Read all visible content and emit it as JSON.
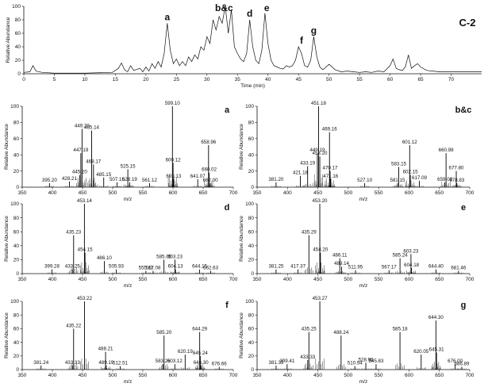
{
  "chart_data": [
    {
      "type": "line",
      "id": "chromatogram",
      "title": "C-2",
      "xlabel": "Time (min)",
      "ylabel": "Relative Abundance",
      "xlim": [
        0,
        75
      ],
      "ylim": [
        0,
        100
      ],
      "xticks": [
        0,
        5,
        10,
        15,
        20,
        25,
        30,
        35,
        40,
        45,
        50,
        55,
        60,
        65,
        70
      ],
      "yticks": [
        0,
        20,
        40,
        60,
        80,
        100
      ],
      "series": [
        {
          "x": [
            0.0,
            1.0,
            1.5,
            2.0,
            3.0,
            5.0,
            10.0,
            14.5,
            15.5,
            16.0,
            16.5,
            17.0,
            17.5,
            18.0,
            19.0,
            19.5,
            20.0,
            20.5,
            21.0,
            21.5,
            22.0,
            22.5,
            23.0,
            23.5,
            24.0,
            24.5,
            25.0,
            25.5,
            26.0,
            26.5,
            27.0,
            27.5,
            28.0,
            28.5,
            29.0,
            29.5,
            30.0,
            30.5,
            31.0,
            31.5,
            32.0,
            32.5,
            33.0,
            33.5,
            34.0,
            34.5,
            35.0,
            35.5,
            36.0,
            36.5,
            37.0,
            37.5,
            38.0,
            38.5,
            39.0,
            39.5,
            40.0,
            40.5,
            41.0,
            41.5,
            42.0,
            42.5,
            43.0,
            43.5,
            44.0,
            44.5,
            45.0,
            45.5,
            46.0,
            46.5,
            47.0,
            47.5,
            48.0,
            48.5,
            49.0,
            49.5,
            50.0,
            51.0,
            52.0,
            53.0,
            54.0,
            55.0,
            56.0,
            57.0,
            58.0,
            59.0,
            60.0,
            60.5,
            61.0,
            61.5,
            62.0,
            62.5,
            63.0,
            63.5,
            64.0,
            64.5,
            65.0,
            66.0,
            67.0,
            68.0,
            70.0,
            72.0,
            74.0,
            75.0
          ],
          "y": [
            2,
            3,
            12,
            4,
            2,
            1,
            1,
            2,
            8,
            16,
            6,
            3,
            12,
            5,
            8,
            3,
            10,
            4,
            15,
            8,
            18,
            10,
            30,
            75,
            35,
            15,
            22,
            12,
            18,
            12,
            25,
            18,
            28,
            22,
            40,
            35,
            55,
            45,
            80,
            65,
            85,
            75,
            100,
            60,
            95,
            40,
            30,
            22,
            18,
            30,
            80,
            40,
            20,
            15,
            35,
            90,
            45,
            20,
            12,
            10,
            8,
            7,
            12,
            10,
            12,
            20,
            40,
            30,
            12,
            10,
            20,
            55,
            25,
            10,
            6,
            10,
            14,
            6,
            3,
            4,
            3,
            2,
            3,
            2,
            4,
            3,
            12,
            22,
            8,
            6,
            5,
            10,
            28,
            8,
            12,
            15,
            10,
            5,
            4,
            3,
            3,
            3,
            3,
            3
          ]
        }
      ],
      "annotations": [
        {
          "label": "a",
          "x": 23.5
        },
        {
          "label": "b&c",
          "x": 32.8
        },
        {
          "label": "d",
          "x": 37.0
        },
        {
          "label": "e",
          "x": 39.8
        },
        {
          "label": "f",
          "x": 45.5
        },
        {
          "label": "g",
          "x": 47.5
        }
      ]
    },
    {
      "type": "bar",
      "id": "a",
      "panel_label": "a",
      "xlabel": "m/z",
      "ylabel": "Relative Abundance",
      "xlim": [
        350,
        700
      ],
      "ylim": [
        0,
        100
      ],
      "xticks": [
        350,
        400,
        450,
        500,
        550,
        600,
        650,
        700
      ],
      "yticks": [
        0,
        20,
        40,
        60,
        80,
        100
      ],
      "peaks": [
        {
          "mz": 395.2,
          "y": 5,
          "label": "395.20"
        },
        {
          "mz": 428.21,
          "y": 7,
          "label": "428.21"
        },
        {
          "mz": 445.2,
          "y": 15,
          "label": "445.20"
        },
        {
          "mz": 447.19,
          "y": 42,
          "label": "447.19"
        },
        {
          "mz": 449.2,
          "y": 72,
          "label": "449.20"
        },
        {
          "mz": 465.14,
          "y": 70,
          "label": "465.14"
        },
        {
          "mz": 468.17,
          "y": 28,
          "label": "468.17"
        },
        {
          "mz": 485.15,
          "y": 12,
          "label": "485.15"
        },
        {
          "mz": 507.16,
          "y": 6,
          "label": "507.16"
        },
        {
          "mz": 525.15,
          "y": 22,
          "label": "525.15"
        },
        {
          "mz": 528.19,
          "y": 6,
          "label": "528.19"
        },
        {
          "mz": 561.12,
          "y": 5,
          "label": "561.12"
        },
        {
          "mz": 599.1,
          "y": 100,
          "label": "599.10"
        },
        {
          "mz": 600.12,
          "y": 30,
          "label": "600.12"
        },
        {
          "mz": 601.13,
          "y": 10,
          "label": "601.13"
        },
        {
          "mz": 641.07,
          "y": 10,
          "label": "641.07"
        },
        {
          "mz": 658.96,
          "y": 52,
          "label": "658.96"
        },
        {
          "mz": 660.02,
          "y": 18,
          "label": "660.02"
        },
        {
          "mz": 662.0,
          "y": 5,
          "label": "662.00"
        }
      ]
    },
    {
      "type": "bar",
      "id": "bc",
      "panel_label": "b&c",
      "xlabel": "m/z",
      "ylabel": "Relative Abundance",
      "xlim": [
        350,
        700
      ],
      "ylim": [
        0,
        100
      ],
      "xticks": [
        350,
        400,
        450,
        500,
        550,
        600,
        650,
        700
      ],
      "yticks": [
        0,
        20,
        40,
        60,
        80,
        100
      ],
      "peaks": [
        {
          "mz": 381.2,
          "y": 6,
          "label": "381.20"
        },
        {
          "mz": 421.18,
          "y": 14,
          "label": "421.18"
        },
        {
          "mz": 433.19,
          "y": 26,
          "label": "433.19"
        },
        {
          "mz": 449.19,
          "y": 42,
          "label": "449.19"
        },
        {
          "mz": 451.18,
          "y": 100,
          "label": "451.18"
        },
        {
          "mz": 453.2,
          "y": 38,
          "label": "453.20"
        },
        {
          "mz": 469.16,
          "y": 68,
          "label": "469.16"
        },
        {
          "mz": 470.17,
          "y": 20,
          "label": "470.17"
        },
        {
          "mz": 471.16,
          "y": 10,
          "label": "471.16"
        },
        {
          "mz": 527.1,
          "y": 5,
          "label": "527.10"
        },
        {
          "mz": 581.15,
          "y": 5,
          "label": "581.15"
        },
        {
          "mz": 583.15,
          "y": 25,
          "label": "583.15"
        },
        {
          "mz": 601.12,
          "y": 52,
          "label": "601.12"
        },
        {
          "mz": 602.15,
          "y": 15,
          "label": "602.15"
        },
        {
          "mz": 617.09,
          "y": 8,
          "label": "617.09"
        },
        {
          "mz": 659.03,
          "y": 6,
          "label": "659.03"
        },
        {
          "mz": 660.98,
          "y": 42,
          "label": "660.98"
        },
        {
          "mz": 677.8,
          "y": 20,
          "label": "677.80"
        },
        {
          "mz": 678.83,
          "y": 5,
          "label": "678.83"
        }
      ]
    },
    {
      "type": "bar",
      "id": "d",
      "panel_label": "d",
      "xlabel": "m/z",
      "ylabel": "Relative Abundance",
      "xlim": [
        350,
        700
      ],
      "ylim": [
        0,
        100
      ],
      "xticks": [
        350,
        400,
        450,
        500,
        550,
        600,
        650,
        700
      ],
      "yticks": [
        0,
        20,
        40,
        60,
        80,
        100
      ],
      "peaks": [
        {
          "mz": 399.28,
          "y": 6,
          "label": "399.28"
        },
        {
          "mz": 433.25,
          "y": 6,
          "label": "433.25"
        },
        {
          "mz": 435.23,
          "y": 55,
          "label": "435.23"
        },
        {
          "mz": 453.14,
          "y": 100,
          "label": "453.14"
        },
        {
          "mz": 454.15,
          "y": 30,
          "label": "454.15"
        },
        {
          "mz": 486.1,
          "y": 18,
          "label": "486.10"
        },
        {
          "mz": 505.93,
          "y": 6,
          "label": "505.93"
        },
        {
          "mz": 555.11,
          "y": 4,
          "label": "555.11"
        },
        {
          "mz": 567.08,
          "y": 4,
          "label": "567.08"
        },
        {
          "mz": 585.05,
          "y": 20,
          "label": "585.05"
        },
        {
          "mz": 603.23,
          "y": 20,
          "label": "603.23"
        },
        {
          "mz": 604.13,
          "y": 6,
          "label": "604.13"
        },
        {
          "mz": 644.15,
          "y": 6,
          "label": "644.15"
        },
        {
          "mz": 662.63,
          "y": 4,
          "label": "662.63"
        }
      ]
    },
    {
      "type": "bar",
      "id": "e",
      "panel_label": "e",
      "xlabel": "m/z",
      "ylabel": "Relative Abundance",
      "xlim": [
        350,
        700
      ],
      "ylim": [
        0,
        100
      ],
      "xticks": [
        350,
        400,
        450,
        500,
        550,
        600,
        650,
        700
      ],
      "yticks": [
        0,
        20,
        40,
        60,
        80,
        100
      ],
      "peaks": [
        {
          "mz": 381.25,
          "y": 6,
          "label": "381.25"
        },
        {
          "mz": 417.37,
          "y": 6,
          "label": "417.37"
        },
        {
          "mz": 435.29,
          "y": 55,
          "label": "435.29"
        },
        {
          "mz": 453.2,
          "y": 100,
          "label": "453.20"
        },
        {
          "mz": 454.2,
          "y": 30,
          "label": "454.20"
        },
        {
          "mz": 486.11,
          "y": 22,
          "label": "486.11"
        },
        {
          "mz": 489.14,
          "y": 10,
          "label": "489.14"
        },
        {
          "mz": 511.95,
          "y": 5,
          "label": "511.95"
        },
        {
          "mz": 567.17,
          "y": 5,
          "label": "567.17"
        },
        {
          "mz": 585.24,
          "y": 22,
          "label": "585.24"
        },
        {
          "mz": 603.23,
          "y": 28,
          "label": "603.23"
        },
        {
          "mz": 604.18,
          "y": 8,
          "label": "604.18"
        },
        {
          "mz": 644.4,
          "y": 6,
          "label": "644.40"
        },
        {
          "mz": 681.46,
          "y": 4,
          "label": "681.46"
        }
      ]
    },
    {
      "type": "bar",
      "id": "f",
      "panel_label": "f",
      "xlabel": "m/z",
      "ylabel": "Relative Abundance",
      "xlim": [
        350,
        700
      ],
      "ylim": [
        0,
        100
      ],
      "xticks": [
        350,
        400,
        450,
        500,
        550,
        600,
        650,
        700
      ],
      "yticks": [
        0,
        20,
        40,
        60,
        80,
        100
      ],
      "peaks": [
        {
          "mz": 381.24,
          "y": 6,
          "label": "381.24"
        },
        {
          "mz": 433.33,
          "y": 6,
          "label": "433.33"
        },
        {
          "mz": 435.22,
          "y": 60,
          "label": "435.22"
        },
        {
          "mz": 453.22,
          "y": 100,
          "label": "453.22"
        },
        {
          "mz": 488.21,
          "y": 26,
          "label": "488.21"
        },
        {
          "mz": 489.19,
          "y": 6,
          "label": "489.19"
        },
        {
          "mz": 512.51,
          "y": 5,
          "label": "512.51"
        },
        {
          "mz": 583.26,
          "y": 8,
          "label": "583.26"
        },
        {
          "mz": 585.2,
          "y": 50,
          "label": "585.20"
        },
        {
          "mz": 603.12,
          "y": 8,
          "label": "603.12"
        },
        {
          "mz": 620.19,
          "y": 22,
          "label": "620.19"
        },
        {
          "mz": 644.29,
          "y": 55,
          "label": "644.29"
        },
        {
          "mz": 645.24,
          "y": 20,
          "label": "645.24"
        },
        {
          "mz": 646.3,
          "y": 6,
          "label": "646.30"
        },
        {
          "mz": 676.66,
          "y": 4,
          "label": "676.66"
        }
      ]
    },
    {
      "type": "bar",
      "id": "g",
      "panel_label": "g",
      "xlabel": "m/z",
      "ylabel": "Relative Abundance",
      "xlim": [
        350,
        700
      ],
      "ylim": [
        0,
        100
      ],
      "xticks": [
        350,
        400,
        450,
        500,
        550,
        600,
        650,
        700
      ],
      "yticks": [
        0,
        20,
        40,
        60,
        80,
        100
      ],
      "peaks": [
        {
          "mz": 381.31,
          "y": 6,
          "label": "381.31"
        },
        {
          "mz": 399.41,
          "y": 8,
          "label": "399.41"
        },
        {
          "mz": 433.33,
          "y": 14,
          "label": "433.33"
        },
        {
          "mz": 435.25,
          "y": 55,
          "label": "435.25"
        },
        {
          "mz": 453.27,
          "y": 100,
          "label": "453.27"
        },
        {
          "mz": 488.24,
          "y": 50,
          "label": "488.24"
        },
        {
          "mz": 510.94,
          "y": 5,
          "label": "510.94"
        },
        {
          "mz": 528.96,
          "y": 10,
          "label": "528.96"
        },
        {
          "mz": 545.83,
          "y": 8,
          "label": "545.83"
        },
        {
          "mz": 585.18,
          "y": 55,
          "label": "585.18"
        },
        {
          "mz": 620.05,
          "y": 22,
          "label": "620.05"
        },
        {
          "mz": 644.3,
          "y": 72,
          "label": "644.30"
        },
        {
          "mz": 645.31,
          "y": 25,
          "label": "645.31"
        },
        {
          "mz": 676.0,
          "y": 8,
          "label": "676.00"
        },
        {
          "mz": 686.89,
          "y": 4,
          "label": "686.89"
        }
      ]
    }
  ]
}
